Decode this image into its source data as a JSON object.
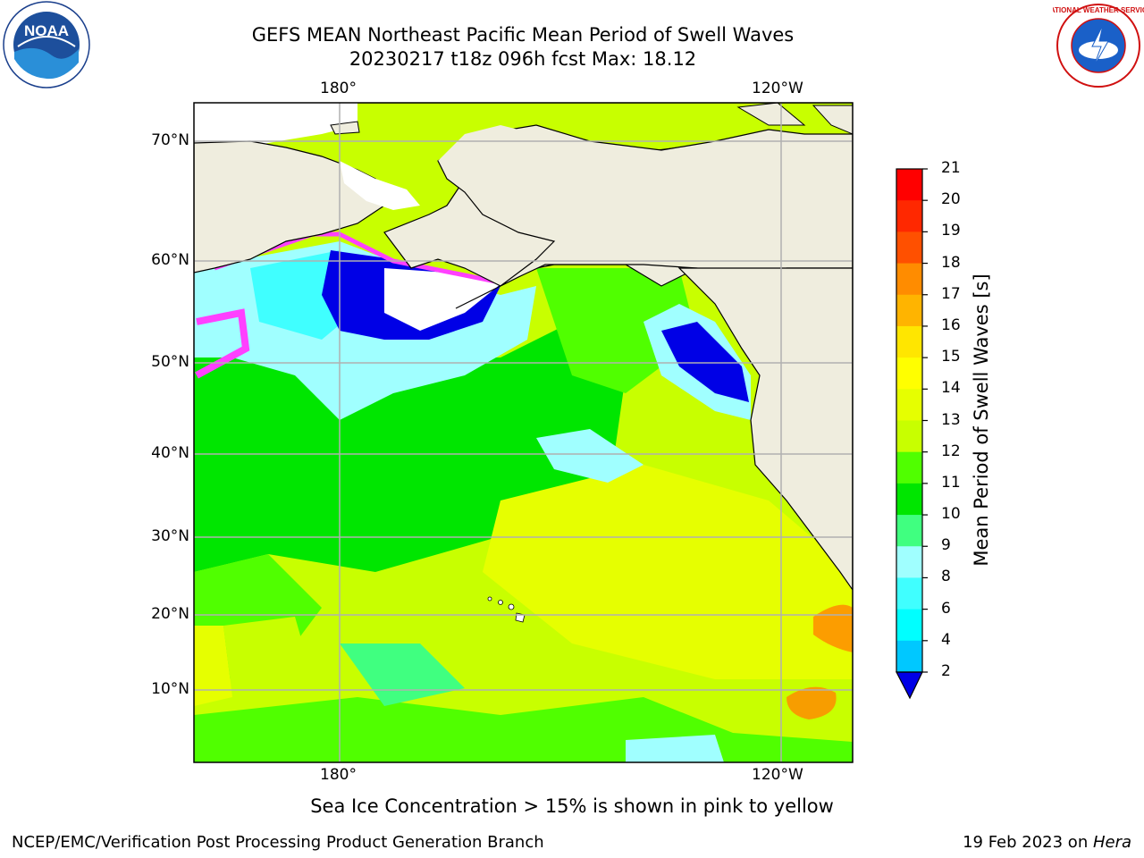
{
  "title": {
    "line1": "GEFS MEAN Northeast Pacific Mean Period of Swell Waves",
    "line2": "20230217 t18z 096h fcst   Max: 18.12"
  },
  "map": {
    "lon_labels_top": [
      "180°",
      "120°W"
    ],
    "lon_labels_bottom": [
      "180°",
      "120°W"
    ],
    "lat_labels": [
      "70°N",
      "60°N",
      "50°N",
      "40°N",
      "30°N",
      "20°N",
      "10°N"
    ],
    "land_color": "#efedde",
    "grid_color": "#b0b0b0"
  },
  "colorbar": {
    "label": "Mean Period of Swell Waves [s]",
    "ticks": [
      "21",
      "20",
      "19",
      "18",
      "17",
      "16",
      "15",
      "14",
      "13",
      "12",
      "11",
      "10",
      "9",
      "8",
      "6",
      "4",
      "2"
    ],
    "colors": [
      "#0000e6",
      "#0064ff",
      "#00c8ff",
      "#00ffff",
      "#40ffff",
      "#a0ffff",
      "#40ff80",
      "#00e600",
      "#50ff00",
      "#c8ff00",
      "#e6ff00",
      "#ffff00",
      "#ffe600",
      "#ffb400",
      "#ff8c00",
      "#ff5000",
      "#ff2800",
      "#ff0000"
    ]
  },
  "note": "Sea Ice Concentration > 15% is shown in pink to yellow",
  "footer": {
    "left": "NCEP/EMC/Verification Post Processing Product Generation Branch",
    "right_prefix": "19 Feb 2023 on ",
    "right_host": "Hera"
  },
  "logos": {
    "left_icon": "noaa-logo-icon",
    "left_text": "NOAA",
    "right_icon": "nws-logo-icon",
    "right_text": "NATIONAL WEATHER SERVICE"
  }
}
